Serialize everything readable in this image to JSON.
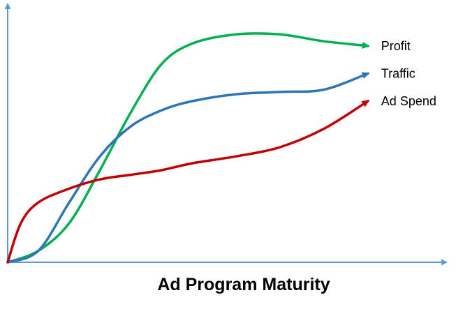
{
  "chart_data": {
    "type": "line",
    "title": "",
    "xlabel": "Ad Program Maturity",
    "ylabel": "",
    "x_ticks": false,
    "y_ticks": false,
    "grid": false,
    "legend": "none",
    "series_labels": "inline at line ends",
    "series": [
      {
        "name": "Profit",
        "color": "#00b050",
        "arrow_end": true,
        "points": [
          [
            0,
            0
          ],
          [
            0.07,
            0.05
          ],
          [
            0.14,
            0.17
          ],
          [
            0.21,
            0.4
          ],
          [
            0.28,
            0.65
          ],
          [
            0.35,
            0.86
          ],
          [
            0.42,
            0.95
          ],
          [
            0.52,
            0.99
          ],
          [
            0.62,
            0.99
          ],
          [
            0.72,
            0.96
          ],
          [
            0.82,
            0.94
          ]
        ]
      },
      {
        "name": "Traffic",
        "color": "#2e75b6",
        "arrow_end": true,
        "points": [
          [
            0,
            0
          ],
          [
            0.07,
            0.05
          ],
          [
            0.14,
            0.26
          ],
          [
            0.21,
            0.46
          ],
          [
            0.28,
            0.59
          ],
          [
            0.35,
            0.66
          ],
          [
            0.42,
            0.7
          ],
          [
            0.52,
            0.73
          ],
          [
            0.62,
            0.74
          ],
          [
            0.72,
            0.75
          ],
          [
            0.82,
            0.82
          ]
        ]
      },
      {
        "name": "Ad Spend",
        "color": "#c00000",
        "arrow_end": true,
        "points": [
          [
            0,
            0
          ],
          [
            0.03,
            0.17
          ],
          [
            0.07,
            0.26
          ],
          [
            0.14,
            0.32
          ],
          [
            0.21,
            0.36
          ],
          [
            0.28,
            0.38
          ],
          [
            0.35,
            0.4
          ],
          [
            0.42,
            0.43
          ],
          [
            0.52,
            0.46
          ],
          [
            0.62,
            0.5
          ],
          [
            0.72,
            0.58
          ],
          [
            0.82,
            0.7
          ]
        ]
      }
    ]
  }
}
